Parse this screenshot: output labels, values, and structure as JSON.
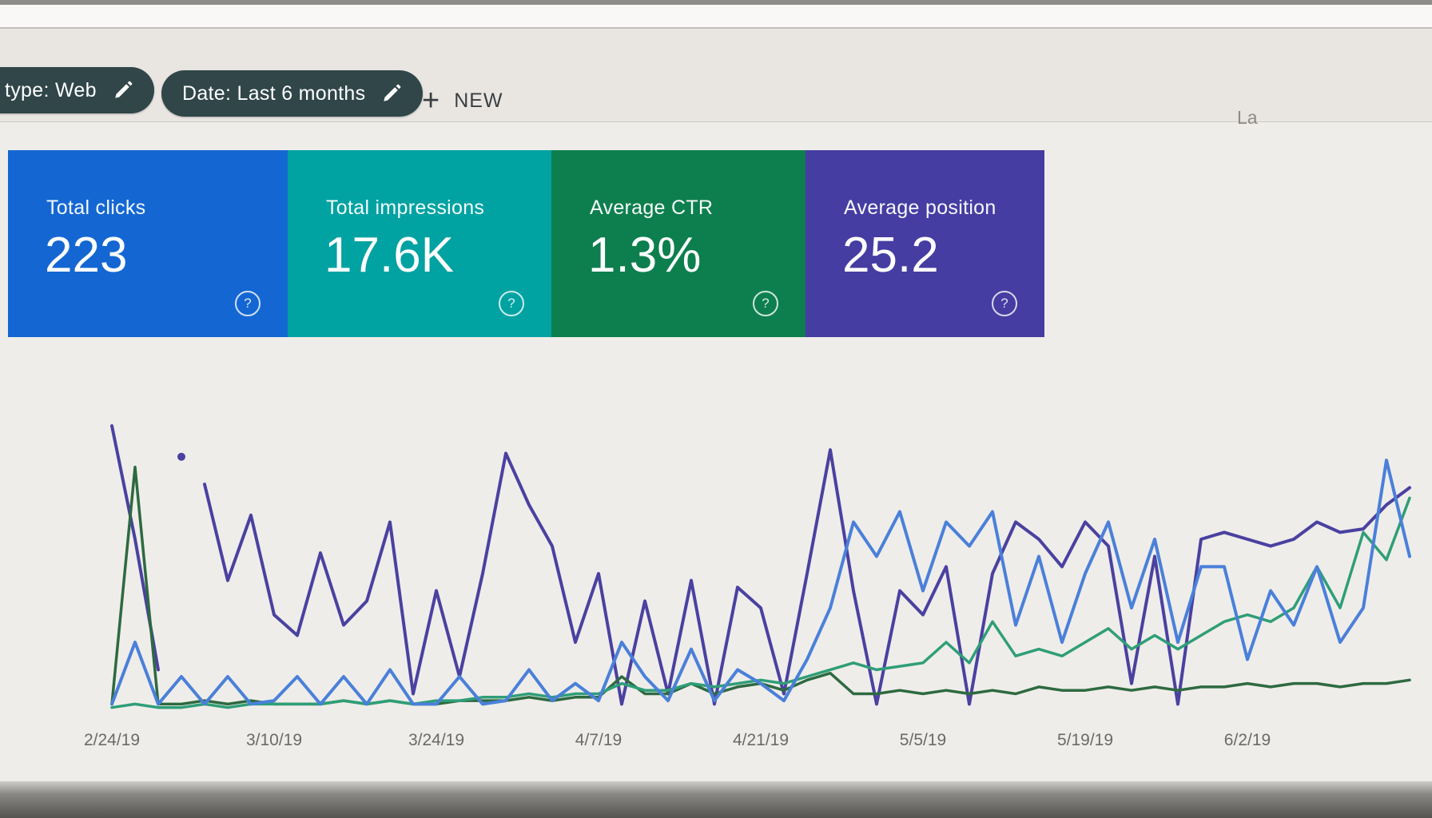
{
  "window": {
    "partial_text_top_right": "La"
  },
  "filter_bar": {
    "chips": [
      {
        "label": "type: Web",
        "icon": "edit-icon"
      },
      {
        "label": "Date: Last 6 months",
        "icon": "edit-icon"
      }
    ],
    "new_button": {
      "label": "NEW",
      "icon": "plus-icon",
      "plus_glyph": "+"
    }
  },
  "metric_cards": [
    {
      "label": "Total clicks",
      "value": "223",
      "color": "#1467d2",
      "help_glyph": "?"
    },
    {
      "label": "Total impressions",
      "value": "17.6K",
      "color": "#00a2a2",
      "help_glyph": "?"
    },
    {
      "label": "Average CTR",
      "value": "1.3%",
      "color": "#0d7f4e",
      "help_glyph": "?"
    },
    {
      "label": "Average position",
      "value": "25.2",
      "color": "#453da2",
      "help_glyph": "?"
    }
  ],
  "chart_data": {
    "type": "line",
    "title": "",
    "xlabel": "",
    "ylabel": "",
    "grid": "none",
    "legend": "none",
    "y_axis": "hidden - values are relative heights 0-100 of plot area (no y scale shown in UI)",
    "x_tick_labels": [
      "2/24/19",
      "3/10/19",
      "3/24/19",
      "4/7/19",
      "4/21/19",
      "5/5/19",
      "5/19/19",
      "6/2/19"
    ],
    "x_tick_day_index": [
      0,
      14,
      28,
      42,
      56,
      70,
      84,
      98
    ],
    "days_per_point": 2,
    "series": [
      {
        "name": "Total clicks",
        "color": "#4a80d9",
        "values": [
          2,
          20,
          2,
          10,
          2,
          10,
          2,
          3,
          10,
          2,
          10,
          2,
          12,
          2,
          2,
          10,
          2,
          3,
          12,
          3,
          8,
          3,
          20,
          10,
          3,
          18,
          3,
          12,
          8,
          3,
          15,
          30,
          55,
          45,
          58,
          35,
          55,
          48,
          58,
          25,
          45,
          20,
          40,
          55,
          30,
          50,
          20,
          42,
          42,
          15,
          35,
          25,
          42,
          20,
          30,
          73,
          45
        ]
      },
      {
        "name": "Total impressions",
        "color": "#2f9e78",
        "values": [
          1,
          2,
          1,
          1,
          2,
          1,
          2,
          2,
          2,
          2,
          3,
          2,
          3,
          2,
          3,
          3,
          4,
          4,
          5,
          4,
          5,
          5,
          8,
          6,
          6,
          8,
          7,
          8,
          9,
          8,
          10,
          12,
          14,
          12,
          13,
          14,
          20,
          14,
          26,
          16,
          18,
          16,
          20,
          24,
          18,
          22,
          18,
          22,
          26,
          28,
          26,
          30,
          42,
          30,
          52,
          44,
          62
        ]
      },
      {
        "name": "Average CTR",
        "color": "#2d6a40",
        "values": [
          2,
          71,
          2,
          2,
          3,
          2,
          3,
          2,
          2,
          2,
          3,
          2,
          3,
          2,
          2,
          3,
          3,
          3,
          4,
          3,
          4,
          4,
          10,
          5,
          5,
          8,
          5,
          7,
          8,
          6,
          9,
          11,
          5,
          5,
          6,
          5,
          6,
          5,
          6,
          5,
          7,
          6,
          6,
          7,
          6,
          7,
          6,
          7,
          7,
          8,
          7,
          8,
          8,
          7,
          8,
          8,
          9
        ]
      },
      {
        "name": "Average position",
        "color": "#4a41a0",
        "values": [
          83,
          50,
          12,
          null,
          66,
          38,
          57,
          28,
          22,
          46,
          25,
          32,
          55,
          5,
          35,
          10,
          40,
          75,
          60,
          48,
          20,
          40,
          2,
          32,
          5,
          38,
          2,
          36,
          30,
          5,
          40,
          76,
          35,
          2,
          35,
          28,
          42,
          2,
          40,
          55,
          50,
          42,
          55,
          48,
          8,
          45,
          2,
          50,
          52,
          50,
          48,
          50,
          55,
          52,
          53,
          60,
          65
        ],
        "detached_point": {
          "index": 3,
          "value": 74
        }
      }
    ]
  }
}
